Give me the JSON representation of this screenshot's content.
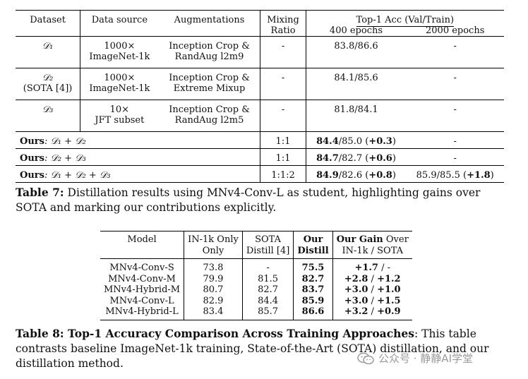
{
  "table7": {
    "headers": {
      "dataset": "Dataset",
      "data_source": "Data source",
      "augmentations": "Augmentations",
      "mixing_l1": "Mixing",
      "mixing_l2": "Ratio",
      "top1": "Top-1 Acc (Val/Train)",
      "ep400": "400 epochs",
      "ep2000": "2000 epochs"
    },
    "rows": [
      {
        "dataset": "𝒟₁",
        "dataset_sub": "",
        "source_l1": "1000×",
        "source_l2": "ImageNet-1k",
        "aug_l1": "Inception Crop &",
        "aug_l2": "RandAug l2m9",
        "mix": "-",
        "acc400": "83.8/86.6",
        "acc2000": "-"
      },
      {
        "dataset": "𝒟₂",
        "dataset_sub": "(SOTA [4])",
        "source_l1": "1000×",
        "source_l2": "ImageNet-1k",
        "aug_l1": "Inception Crop &",
        "aug_l2": "Extreme Mixup",
        "mix": "-",
        "acc400": "84.1/85.6",
        "acc2000": "-"
      },
      {
        "dataset": "𝒟₃",
        "dataset_sub": "",
        "source_l1": "10×",
        "source_l2": "JFT subset",
        "aug_l1": "Inception Crop &",
        "aug_l2": "RandAug l2m5",
        "mix": "-",
        "acc400": "81.8/84.1",
        "acc2000": "-"
      }
    ],
    "ours": [
      {
        "label": "Ours",
        "combo": ": 𝒟₁ + 𝒟₂",
        "mix": "1:1",
        "acc_bold": "84.4",
        "acc_rest": "/85.0 (",
        "gain": "+0.3",
        "acc_close": ")",
        "acc2000": "-"
      },
      {
        "label": "Ours",
        "combo": ": 𝒟₂ + 𝒟₃",
        "mix": "1:1",
        "acc_bold": "84.7",
        "acc_rest": "/82.7 (",
        "gain": "+0.6",
        "acc_close": ")",
        "acc2000": "-"
      },
      {
        "label": "Ours",
        "combo": ": 𝒟₁ + 𝒟₂ + 𝒟₃",
        "mix": "1:1:2",
        "acc_bold": "84.9",
        "acc_rest": "/82.6 (",
        "gain": "+0.8",
        "acc_close": ")",
        "acc2000": "85.9/85.5 (",
        "gain2000": "+1.8",
        "acc2000_close": ")"
      }
    ],
    "caption_label": "Table 7:",
    "caption_text": " Distillation results using MNv4-Conv-L as student, highlighting gains over SOTA and marking our contributions explicitly."
  },
  "table8": {
    "headers": {
      "model": "Model",
      "in1k_l1": "IN-1k Only",
      "in1k_l2": "Only",
      "sota_l1": "SOTA",
      "sota_l2": "Distill [4]",
      "our_l1": "Our",
      "our_l2": "Distill",
      "gain_l1_bold": "Our Gain",
      "gain_l1_rest": " Over",
      "gain_l2": "IN-1k / SOTA"
    },
    "rows": [
      {
        "model": "MNv4-Conv-S",
        "in1k": "73.8",
        "sota": "-",
        "ours": "75.5",
        "gain_a": "+1.7",
        "gain_b": "-"
      },
      {
        "model": "MNv4-Conv-M",
        "in1k": "79.9",
        "sota": "81.5",
        "ours": "82.7",
        "gain_a": "+2.8",
        "gain_b": "+1.2"
      },
      {
        "model": "MNv4-Hybrid-M",
        "in1k": "80.7",
        "sota": "82.7",
        "ours": "83.7",
        "gain_a": "+3.0",
        "gain_b": "+1.0"
      },
      {
        "model": "MNv4-Conv-L",
        "in1k": "82.9",
        "sota": "84.4",
        "ours": "85.9",
        "gain_a": "+3.0",
        "gain_b": "+1.5"
      },
      {
        "model": "MNv4-Hybrid-L",
        "in1k": "83.4",
        "sota": "85.7",
        "ours": "86.6",
        "gain_a": "+3.2",
        "gain_b": "+0.9"
      }
    ],
    "caption_label": "Table 8: Top-1 Accuracy Comparison Across Training Approaches",
    "caption_text": ": This table contrasts baseline ImageNet-1k training, State-of-the-Art (SOTA) distillation, and our distillation method."
  },
  "watermark": {
    "text": "公众号 · 静静AI学堂",
    "icon": "wechat-icon"
  }
}
